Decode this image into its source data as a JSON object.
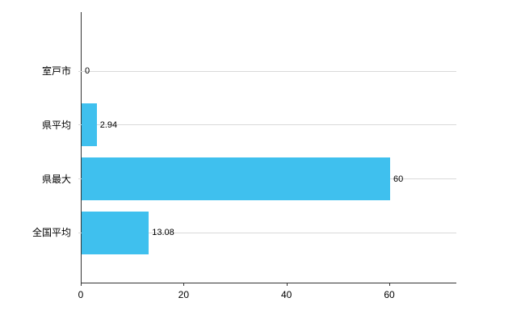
{
  "chart_data": {
    "type": "bar",
    "orientation": "horizontal",
    "title": "",
    "categories": [
      "室戸市",
      "県平均",
      "県最大",
      "全国平均"
    ],
    "values": [
      0,
      2.94,
      60,
      13.08
    ],
    "value_labels": [
      "0",
      "2.94",
      "60",
      "13.08"
    ],
    "x_ticks": [
      0,
      20,
      40,
      60
    ],
    "x_tick_labels": [
      "0",
      "20",
      "40",
      "60"
    ],
    "xlim": [
      0,
      73
    ],
    "grid": "horizontal-category-lines",
    "legend": "none",
    "bar_color": "#3fc0ee",
    "axis_color": "#333333",
    "gridline_color": "#d9d9d9",
    "label_color": "#000000"
  }
}
